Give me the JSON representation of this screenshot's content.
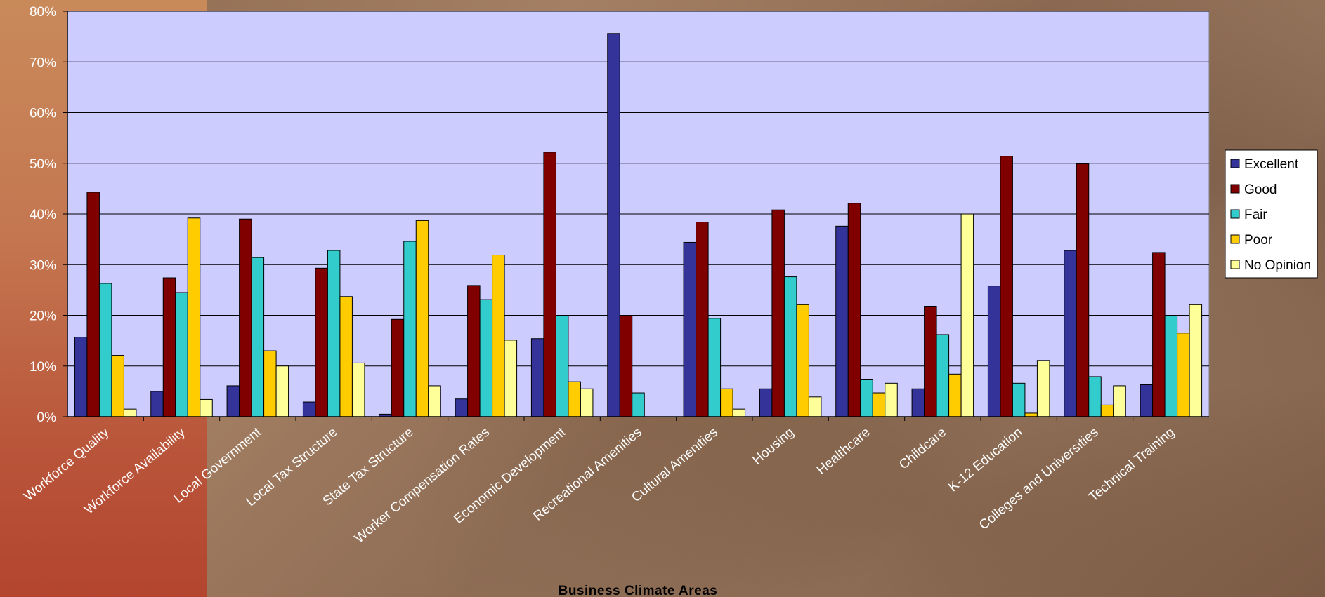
{
  "chart_data": {
    "type": "bar",
    "xlabel": "Business Climate Areas",
    "ylabel": "",
    "ylim": [
      0,
      80
    ],
    "yticks": [
      "0%",
      "10%",
      "20%",
      "30%",
      "40%",
      "50%",
      "60%",
      "70%",
      "80%"
    ],
    "grid": true,
    "legend_position": "right",
    "categories": [
      "Workforce Quality",
      "Workforce Availability",
      "Local Government",
      "Local Tax Structure",
      "State Tax Structure",
      "Worker Compensation Rates",
      "Economic Development",
      "Recreational Amenities",
      "Cultural Amenities",
      "Housing",
      "Healthcare",
      "Childcare",
      "K-12 Education",
      "Colleges and Universities",
      "Technical Training"
    ],
    "series": [
      {
        "name": "Excellent",
        "color": "#333399",
        "values": [
          15.7,
          5.0,
          6.1,
          2.9,
          0.5,
          3.5,
          15.4,
          75.6,
          34.4,
          5.5,
          37.6,
          5.5,
          25.8,
          32.8,
          6.3
        ]
      },
      {
        "name": "Good",
        "color": "#800000",
        "values": [
          44.3,
          27.4,
          39.0,
          29.3,
          19.2,
          25.9,
          52.2,
          20.0,
          38.4,
          40.8,
          42.1,
          21.8,
          51.4,
          49.9,
          32.4
        ]
      },
      {
        "name": "Fair",
        "color": "#33CCCC",
        "values": [
          26.3,
          24.5,
          31.4,
          32.8,
          34.6,
          23.1,
          19.9,
          4.7,
          19.4,
          27.6,
          7.4,
          16.2,
          6.6,
          7.9,
          20.0
        ]
      },
      {
        "name": "Poor",
        "color": "#FFCC00",
        "values": [
          12.1,
          39.2,
          13.0,
          23.7,
          38.7,
          31.9,
          6.9,
          0,
          5.5,
          22.1,
          4.7,
          8.4,
          0.7,
          2.3,
          16.5
        ]
      },
      {
        "name": "No Opinion",
        "color": "#FFFF99",
        "values": [
          1.5,
          3.4,
          10.0,
          10.6,
          6.1,
          15.1,
          5.5,
          0,
          1.5,
          3.9,
          6.6,
          40.0,
          11.1,
          6.1,
          22.1
        ]
      }
    ]
  }
}
